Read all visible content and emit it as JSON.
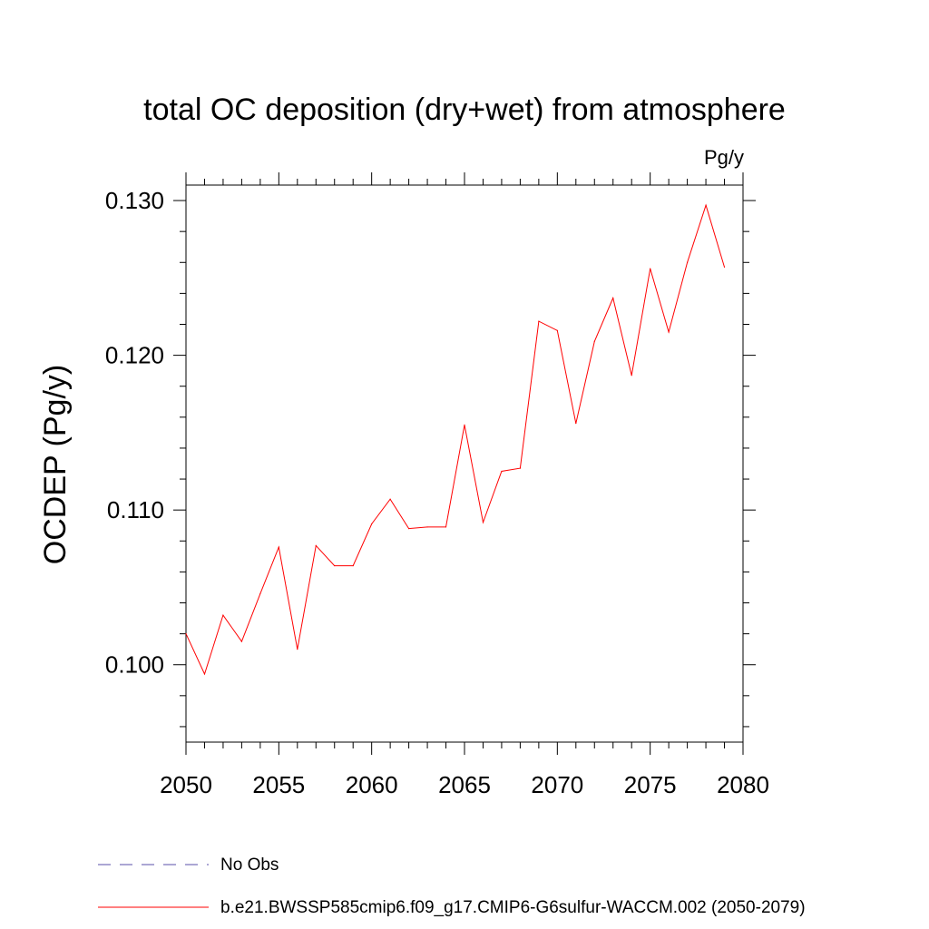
{
  "chart_data": {
    "type": "line",
    "title": "total OC deposition (dry+wet) from atmosphere",
    "units_label": "Pg/y",
    "ylabel": "OCDEP  (Pg/y)",
    "xlabel": "",
    "xlim": [
      2050,
      2080
    ],
    "ylim": [
      0.095,
      0.131
    ],
    "x_ticks": [
      2050,
      2055,
      2060,
      2065,
      2070,
      2075,
      2080
    ],
    "x_tick_labels": [
      "2050",
      "2055",
      "2060",
      "2065",
      "2070",
      "2075",
      "2080"
    ],
    "y_ticks": [
      0.1,
      0.11,
      0.12,
      0.13
    ],
    "y_tick_labels": [
      "0.100",
      "0.110",
      "0.120",
      "0.130"
    ],
    "y_minor_step": 0.002,
    "x_minor_step": 1,
    "grid": false,
    "series": [
      {
        "name": "b.e21.BWSSP585cmip6.f09_g17.CMIP6-G6sulfur-WACCM.002 (2050-2079)",
        "color": "#ff0000",
        "style": "solid",
        "x": [
          2050,
          2051,
          2052,
          2053,
          2054,
          2055,
          2056,
          2057,
          2058,
          2059,
          2060,
          2061,
          2062,
          2063,
          2064,
          2065,
          2066,
          2067,
          2068,
          2069,
          2070,
          2071,
          2072,
          2073,
          2074,
          2075,
          2076,
          2077,
          2078,
          2079
        ],
        "y": [
          0.102,
          0.0994,
          0.1032,
          0.1015,
          0.1046,
          0.1076,
          0.101,
          0.1077,
          0.1064,
          0.1064,
          0.1091,
          0.1107,
          0.1088,
          0.1089,
          0.1089,
          0.1155,
          0.1092,
          0.1125,
          0.1127,
          0.1222,
          0.1216,
          0.1156,
          0.1209,
          0.1237,
          0.1187,
          0.1256,
          0.1215,
          0.126,
          0.1297,
          0.1257
        ]
      }
    ],
    "legend": {
      "placement": "bottom",
      "entries": [
        {
          "label": "No Obs",
          "color": "#5a4fa8",
          "style": "dashed"
        },
        {
          "label": "b.e21.BWSSP585cmip6.f09_g17.CMIP6-G6sulfur-WACCM.002 (2050-2079)",
          "color": "#ff0000",
          "style": "solid"
        }
      ]
    }
  }
}
